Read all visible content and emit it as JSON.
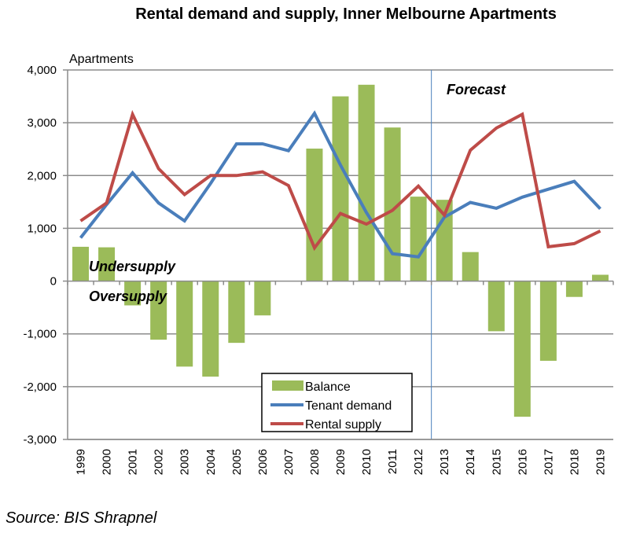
{
  "chart_data": {
    "type": "bar",
    "title": "Rental demand and supply, Inner Melbourne Apartments",
    "ylabel": "Apartments",
    "xlabel": "",
    "ylim": [
      -3000,
      4000
    ],
    "yticks": [
      4000,
      3000,
      2000,
      1000,
      0,
      -1000,
      -2000,
      -3000
    ],
    "ytick_labels": [
      "4,000",
      "3,000",
      "2,000",
      "1,000",
      "0",
      "-1,000",
      "-2,000",
      "-3,000"
    ],
    "grid": true,
    "categories": [
      "1999",
      "2000",
      "2001",
      "2002",
      "2003",
      "2004",
      "2005",
      "2006",
      "2007",
      "2008",
      "2009",
      "2010",
      "2011",
      "2012",
      "2013",
      "2014",
      "2015",
      "2016",
      "2017",
      "2018",
      "2019"
    ],
    "series": [
      {
        "name": "Balance",
        "kind": "bar",
        "color": "#9bbb59",
        "values": [
          650,
          640,
          -460,
          -1110,
          -1620,
          -1810,
          -1170,
          -650,
          0,
          2510,
          3500,
          3720,
          2910,
          1600,
          1540,
          550,
          -950,
          -2570,
          -1510,
          -300,
          120
        ]
      },
      {
        "name": "Tenant demand",
        "kind": "line",
        "color": "#4a7ebb",
        "values": [
          820,
          1450,
          2050,
          1480,
          1140,
          1850,
          2600,
          2600,
          2470,
          3180,
          2200,
          1300,
          520,
          460,
          1210,
          1490,
          1380,
          1590,
          1740,
          1890,
          1370
        ]
      },
      {
        "name": "Rental supply",
        "kind": "line",
        "color": "#be4b48",
        "values": [
          1140,
          1480,
          3160,
          2130,
          1640,
          2000,
          2000,
          2070,
          1810,
          630,
          1280,
          1080,
          1340,
          1800,
          1250,
          2480,
          2900,
          3160,
          650,
          710,
          950
        ]
      }
    ],
    "legend": {
      "placement": "bottom-center",
      "entries": [
        "Balance",
        "Tenant demand",
        "Rental supply"
      ]
    },
    "annotations": {
      "forecast": "Forecast",
      "forecast_start_after": "2012",
      "undersupply": "Undersupply",
      "oversupply": "Oversupply"
    },
    "source": "Source: BIS Shrapnel"
  }
}
